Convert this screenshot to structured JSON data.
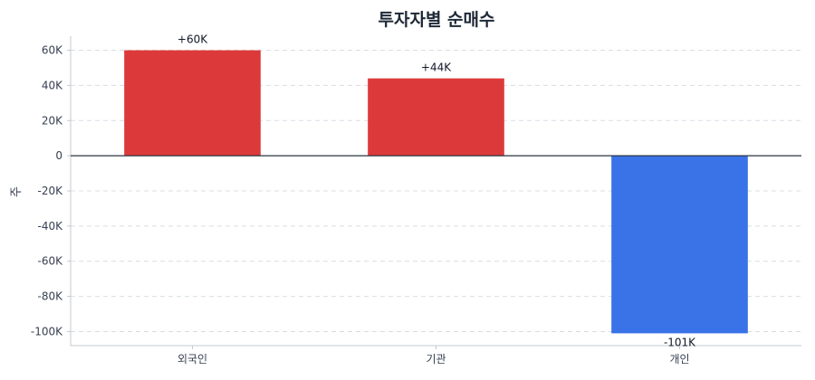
{
  "chart_data": {
    "type": "bar",
    "title": "투자자별 순매수",
    "xlabel": "",
    "ylabel": "주",
    "categories": [
      "외국인",
      "기관",
      "개인"
    ],
    "values": [
      60000,
      44000,
      -101000
    ],
    "data_labels": [
      "+60K",
      "+44K",
      "-101K"
    ],
    "ylim": [
      -108000,
      68000
    ],
    "yticks": [
      60000,
      40000,
      20000,
      0,
      -20000,
      -40000,
      -60000,
      -80000,
      -100000
    ],
    "ytick_labels": [
      "60K",
      "40K",
      "20K",
      "0",
      "-20K",
      "-40K",
      "-60K",
      "-80K",
      "-100K"
    ],
    "grid": true,
    "colors": {
      "positive": "#dc3a3a",
      "negative": "#3a72e8",
      "zero_line": "#2b3440",
      "axis": "#c4c9d0"
    }
  }
}
